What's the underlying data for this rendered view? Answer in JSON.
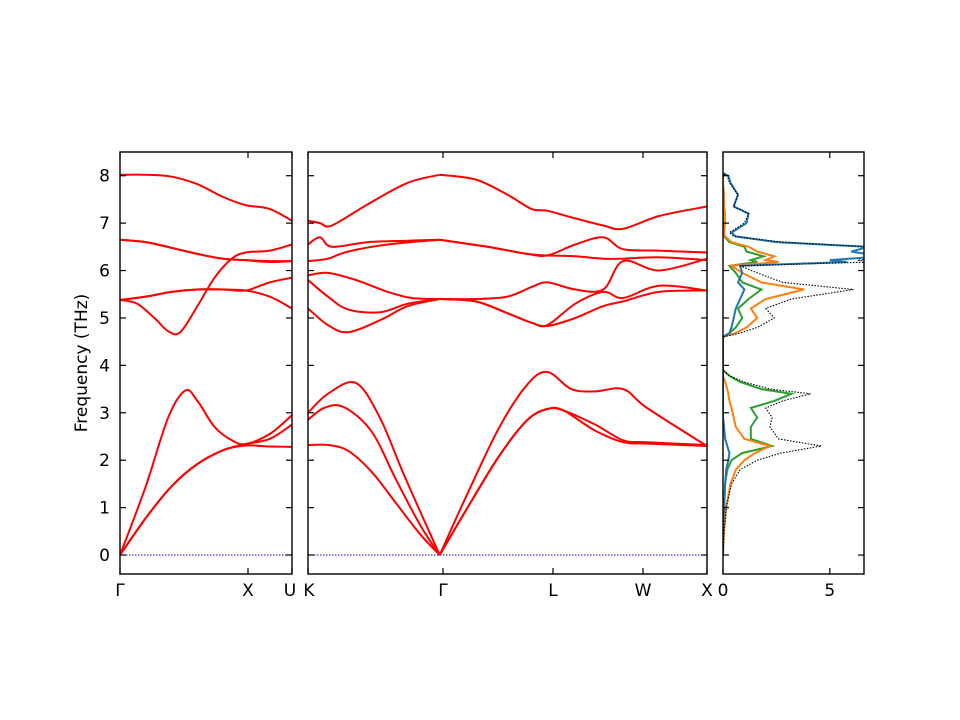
{
  "chart_data": {
    "type": "line",
    "ylabel": "Frequency (THz)",
    "ylim": [
      -0.4,
      8.5
    ],
    "yticks": [
      "0",
      "1",
      "2",
      "3",
      "4",
      "5",
      "6",
      "7",
      "8"
    ],
    "xtick_labels": [
      "Γ",
      "X",
      "U",
      "K",
      "Γ",
      "L",
      "W",
      "X"
    ],
    "dos_xlim": [
      0,
      6.6
    ],
    "dos_xticks": [
      "0",
      "5"
    ],
    "colors": {
      "bands": "#ff0000",
      "zero_line": "#0000cc",
      "dos_total": "#000000",
      "dos_blue": "#1f77b4",
      "dos_orange": "#ff7f0e",
      "dos_green": "#2ca02c"
    },
    "panels": [
      {
        "segment": "Γ-X-U",
        "branches": [
          {
            "x": [
              0,
              0.15,
              0.3,
              0.45,
              0.6,
              0.73,
              0.87,
              1.0
            ],
            "y": [
              0.0,
              0.78,
              1.45,
              1.92,
              2.21,
              2.34,
              2.45,
              2.75
            ]
          },
          {
            "x": [
              0,
              0.15,
              0.3,
              0.45,
              0.6,
              0.73,
              0.87,
              1.0
            ],
            "y": [
              0.0,
              0.78,
              1.45,
              1.92,
              2.21,
              2.31,
              2.29,
              2.28
            ]
          },
          {
            "x": [
              0,
              0.15,
              0.28,
              0.38,
              0.45,
              0.55,
              0.65,
              0.73,
              0.87,
              1.0
            ],
            "y": [
              0.0,
              1.45,
              2.9,
              3.47,
              3.25,
              2.7,
              2.42,
              2.34,
              2.55,
              2.95
            ]
          },
          {
            "x": [
              0,
              0.1,
              0.2,
              0.28,
              0.35,
              0.45,
              0.55,
              0.65,
              0.73,
              0.87,
              1.0
            ],
            "y": [
              5.38,
              5.3,
              5.0,
              4.72,
              4.7,
              5.25,
              5.85,
              6.25,
              6.38,
              6.42,
              6.55
            ]
          },
          {
            "x": [
              0,
              0.15,
              0.3,
              0.45,
              0.6,
              0.73,
              0.87,
              1.0
            ],
            "y": [
              5.38,
              5.45,
              5.55,
              5.6,
              5.6,
              5.58,
              5.45,
              5.2
            ]
          },
          {
            "x": [
              0,
              0.15,
              0.3,
              0.45,
              0.6,
              0.73,
              0.87,
              1.0
            ],
            "y": [
              5.38,
              5.45,
              5.55,
              5.6,
              5.6,
              5.58,
              5.75,
              5.85
            ]
          },
          {
            "x": [
              0,
              0.15,
              0.3,
              0.45,
              0.6,
              0.73,
              0.87,
              1.0
            ],
            "y": [
              6.65,
              6.6,
              6.48,
              6.35,
              6.25,
              6.22,
              6.2,
              6.2
            ]
          },
          {
            "x": [
              0,
              0.15,
              0.3,
              0.45,
              0.6,
              0.73,
              0.87,
              1.0
            ],
            "y": [
              6.65,
              6.6,
              6.48,
              6.35,
              6.25,
              6.22,
              6.18,
              6.2
            ]
          },
          {
            "x": [
              0,
              0.15,
              0.3,
              0.45,
              0.6,
              0.73,
              0.87,
              1.0
            ],
            "y": [
              8.02,
              8.02,
              7.98,
              7.82,
              7.55,
              7.38,
              7.3,
              7.05
            ]
          }
        ]
      },
      {
        "segment": "K-Γ-L-W-X",
        "branches": [
          {
            "x": [
              0,
              0.05,
              0.1,
              0.16,
              0.22,
              0.28,
              0.33
            ],
            "y": [
              2.32,
              2.32,
              2.2,
              1.75,
              1.1,
              0.45,
              0.0
            ]
          },
          {
            "x": [
              0,
              0.04,
              0.09,
              0.16,
              0.22,
              0.28,
              0.33
            ],
            "y": [
              2.85,
              3.1,
              3.12,
              2.6,
              1.6,
              0.65,
              0.0
            ]
          },
          {
            "x": [
              0,
              0.05,
              0.12,
              0.18,
              0.24,
              0.33
            ],
            "y": [
              3.0,
              3.4,
              3.63,
              2.9,
              1.7,
              0.0
            ]
          },
          {
            "x": [
              0.33,
              0.4,
              0.48,
              0.55,
              0.6,
              0.64,
              0.72,
              0.79,
              0.85,
              1.0
            ],
            "y": [
              0.0,
              1.0,
              2.1,
              2.85,
              3.08,
              3.05,
              2.62,
              2.38,
              2.35,
              2.3
            ]
          },
          {
            "x": [
              0.33,
              0.4,
              0.48,
              0.55,
              0.6,
              0.64,
              0.72,
              0.79,
              0.85,
              1.0
            ],
            "y": [
              0.0,
              1.0,
              2.1,
              2.85,
              3.08,
              3.05,
              2.75,
              2.42,
              2.38,
              2.32
            ]
          },
          {
            "x": [
              0.33,
              0.4,
              0.48,
              0.55,
              0.6,
              0.66,
              0.72,
              0.79,
              0.85,
              1.0
            ],
            "y": [
              0.0,
              1.3,
              2.7,
              3.6,
              3.86,
              3.5,
              3.45,
              3.5,
              3.1,
              2.3
            ]
          },
          {
            "x": [
              0,
              0.05,
              0.1,
              0.18,
              0.25,
              0.33
            ],
            "y": [
              5.2,
              4.85,
              4.7,
              4.95,
              5.25,
              5.4
            ]
          },
          {
            "x": [
              0,
              0.05,
              0.1,
              0.18,
              0.25,
              0.33
            ],
            "y": [
              5.8,
              5.45,
              5.18,
              5.12,
              5.3,
              5.4
            ]
          },
          {
            "x": [
              0,
              0.05,
              0.12,
              0.2,
              0.26,
              0.33
            ],
            "y": [
              5.9,
              5.95,
              5.8,
              5.55,
              5.42,
              5.4
            ]
          },
          {
            "x": [
              0.33,
              0.42,
              0.5,
              0.56,
              0.6,
              0.67,
              0.74,
              0.79,
              0.88,
              1.0
            ],
            "y": [
              5.4,
              5.35,
              5.1,
              4.9,
              4.83,
              5.0,
              5.25,
              5.35,
              5.55,
              5.58
            ]
          },
          {
            "x": [
              0.33,
              0.42,
              0.5,
              0.56,
              0.6,
              0.67,
              0.74,
              0.79,
              0.88,
              1.0
            ],
            "y": [
              5.4,
              5.35,
              5.1,
              4.9,
              4.85,
              5.3,
              5.55,
              5.42,
              5.68,
              5.58
            ]
          },
          {
            "x": [
              0.33,
              0.42,
              0.5,
              0.56,
              0.6,
              0.67,
              0.74,
              0.79,
              0.88,
              1.0
            ],
            "y": [
              5.4,
              5.4,
              5.45,
              5.65,
              5.75,
              5.6,
              5.6,
              6.2,
              6.0,
              6.25
            ]
          },
          {
            "x": [
              0,
              0.05,
              0.1,
              0.2,
              0.33
            ],
            "y": [
              6.2,
              6.25,
              6.4,
              6.55,
              6.65
            ]
          },
          {
            "x": [
              0,
              0.03,
              0.06,
              0.15,
              0.25,
              0.33
            ],
            "y": [
              6.55,
              6.7,
              6.5,
              6.6,
              6.63,
              6.65
            ]
          },
          {
            "x": [
              0.33,
              0.45,
              0.55,
              0.6,
              0.67,
              0.74,
              0.79,
              0.88,
              1.0
            ],
            "y": [
              6.65,
              6.5,
              6.35,
              6.32,
              6.55,
              6.7,
              6.45,
              6.42,
              6.38
            ]
          },
          {
            "x": [
              0.33,
              0.45,
              0.55,
              0.6,
              0.67,
              0.74,
              0.79,
              0.88,
              1.0
            ],
            "y": [
              6.65,
              6.5,
              6.35,
              6.32,
              6.3,
              6.25,
              6.25,
              6.28,
              6.22
            ]
          },
          {
            "x": [
              0,
              0.03,
              0.06,
              0.15,
              0.25,
              0.33
            ],
            "y": [
              7.05,
              7.0,
              6.95,
              7.4,
              7.85,
              8.02
            ]
          },
          {
            "x": [
              0.33,
              0.42,
              0.5,
              0.56,
              0.6,
              0.67,
              0.74,
              0.79,
              0.88,
              1.0
            ],
            "y": [
              8.02,
              7.92,
              7.6,
              7.3,
              7.26,
              7.1,
              6.95,
              6.88,
              7.15,
              7.35
            ]
          }
        ]
      }
    ],
    "dos": {
      "freq": [
        0.0,
        0.5,
        1.0,
        1.5,
        1.8,
        2.0,
        2.15,
        2.3,
        2.45,
        2.7,
        2.9,
        3.1,
        3.25,
        3.4,
        3.5,
        3.65,
        3.78,
        3.9,
        4.1,
        4.6,
        4.68,
        4.8,
        5.0,
        5.2,
        5.4,
        5.6,
        5.75,
        5.95,
        6.1,
        6.18,
        6.22,
        6.3,
        6.4,
        6.5,
        6.6,
        6.72,
        6.8,
        7.0,
        7.2,
        7.35,
        7.6,
        7.85,
        8.0,
        8.05
      ],
      "total": [
        0.0,
        0.05,
        0.15,
        0.4,
        0.8,
        1.6,
        2.7,
        4.6,
        2.6,
        2.2,
        2.3,
        2.0,
        2.8,
        4.1,
        2.2,
        1.0,
        0.3,
        0.0,
        0.0,
        0.0,
        0.8,
        1.6,
        2.4,
        2.0,
        3.2,
        6.1,
        2.8,
        1.6,
        0.8,
        7.0,
        6.3,
        8.5,
        7.2,
        6.7,
        2.8,
        0.5,
        0.3,
        1.0,
        1.2,
        0.5,
        0.7,
        0.3,
        0.2,
        0.0
      ],
      "blue": [
        0.0,
        0.0,
        0.05,
        0.1,
        0.15,
        0.25,
        0.3,
        0.2,
        0.1,
        0.05,
        0.0,
        0.0,
        0.0,
        0.0,
        0.0,
        0.0,
        0.0,
        0.0,
        0.0,
        0.0,
        0.3,
        0.4,
        0.5,
        0.6,
        0.8,
        1.0,
        0.7,
        0.9,
        0.8,
        5.8,
        5.0,
        7.5,
        6.0,
        6.8,
        2.5,
        0.6,
        0.4,
        1.1,
        1.2,
        0.5,
        0.7,
        0.35,
        0.25,
        0.0
      ],
      "orange": [
        0.0,
        0.05,
        0.15,
        0.35,
        0.6,
        1.0,
        1.5,
        2.2,
        1.0,
        0.6,
        0.5,
        0.4,
        0.3,
        0.25,
        0.2,
        0.1,
        0.0,
        0.0,
        0.0,
        0.0,
        0.6,
        1.1,
        1.6,
        1.3,
        2.0,
        3.8,
        1.8,
        0.9,
        0.4,
        2.6,
        2.0,
        2.4,
        1.6,
        1.2,
        0.4,
        0.1,
        0.05,
        0.1,
        0.1,
        0.05,
        0.05,
        0.0,
        0.0,
        0.0
      ],
      "green": [
        0.0,
        0.0,
        0.05,
        0.1,
        0.2,
        0.4,
        0.9,
        2.3,
        1.3,
        1.3,
        1.6,
        1.3,
        2.4,
        3.2,
        1.8,
        0.8,
        0.3,
        0.0,
        0.0,
        0.0,
        0.3,
        0.6,
        0.9,
        0.7,
        1.2,
        1.8,
        0.9,
        0.6,
        0.3,
        1.6,
        1.3,
        1.9,
        1.1,
        1.0,
        0.3,
        0.05,
        0.0,
        0.0,
        0.0,
        0.0,
        0.0,
        0.0,
        0.0,
        0.0
      ]
    }
  }
}
